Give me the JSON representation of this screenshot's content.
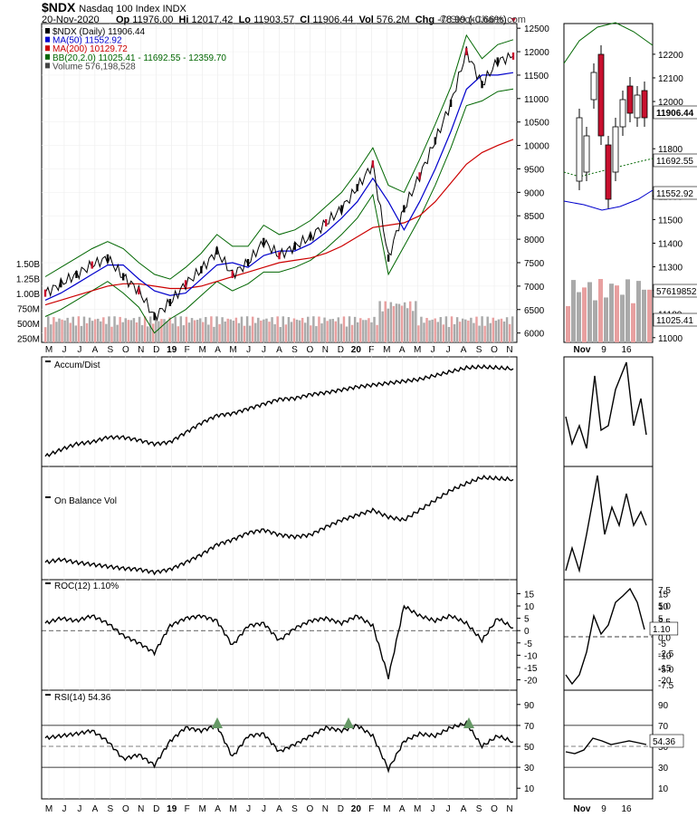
{
  "header": {
    "symbol": "$NDX",
    "name": "Nasdaq 100 Index INDX",
    "date": "20-Nov-2020",
    "op_label": "Op",
    "op": "11976.00",
    "hi_label": "Hi",
    "hi": "12017.42",
    "lo_label": "Lo",
    "lo": "11903.57",
    "cl_label": "Cl",
    "cl": "11906.44",
    "vol_label": "Vol",
    "vol": "576.2M",
    "chg_label": "Chg",
    "chg": "-78.99 (-0.66%)",
    "brand": "© StockCharts.com"
  },
  "colors": {
    "price": "#000000",
    "ma50": "#0000cc",
    "ma200": "#cc0000",
    "bb": "#006600",
    "vol_up": "#aaaaaa",
    "vol_down": "#e8a0a0",
    "candle_down": "#c8102e",
    "rsi_fill": "#669966"
  },
  "legend": {
    "price": "$NDX (Daily) 11906.44",
    "ma50": "MA(50) 11552.92",
    "ma200": "MA(200) 10129.72",
    "bb": "BB(20,2.0) 11025.41 - 11692.55 - 12359.70",
    "volume": "Volume 576,198,528"
  },
  "badges": {
    "price": "11906.44",
    "bb_mid": "11692.55",
    "ma50": "11552.92",
    "volume": "576198528",
    "bb_low": "11025.41",
    "roc": "1.10",
    "rsi": "54.36"
  },
  "x_labels": [
    "M",
    "J",
    "J",
    "A",
    "S",
    "O",
    "N",
    "D",
    "19",
    "F",
    "M",
    "A",
    "M",
    "J",
    "J",
    "A",
    "S",
    "O",
    "N",
    "D",
    "20",
    "F",
    "M",
    "A",
    "M",
    "J",
    "J",
    "A",
    "S",
    "O",
    "N"
  ],
  "zoom_x_labels": [
    "Nov",
    "9",
    "16"
  ],
  "chart_data": [
    {
      "type": "line",
      "title": "$NDX (Daily) 11906.44",
      "y_ticks_price": [
        12500,
        12000,
        11500,
        11000,
        10500,
        10000,
        9500,
        9000,
        8500,
        8000,
        7500,
        7000,
        6500,
        6000
      ],
      "y_ticks_volume": [
        "1.50B",
        "1.25B",
        "1.00B",
        "750M",
        "500M",
        "250M"
      ],
      "x_dates": [
        "2018-05",
        "2018-06",
        "2018-07",
        "2018-08",
        "2018-09",
        "2018-10",
        "2018-11",
        "2018-12",
        "2019-01",
        "2019-02",
        "2019-03",
        "2019-04",
        "2019-05",
        "2019-06",
        "2019-07",
        "2019-08",
        "2019-09",
        "2019-10",
        "2019-11",
        "2019-12",
        "2020-01",
        "2020-02",
        "2020-03",
        "2020-04",
        "2020-05",
        "2020-06",
        "2020-07",
        "2020-08",
        "2020-09",
        "2020-10",
        "2020-11"
      ],
      "series": [
        {
          "name": "$NDX (Daily) 11906.44",
          "values": [
            6850,
            7050,
            7250,
            7450,
            7600,
            7200,
            6900,
            6350,
            6650,
            7050,
            7350,
            7750,
            7250,
            7500,
            7950,
            7650,
            7850,
            8050,
            8350,
            8650,
            9100,
            9600,
            7600,
            8650,
            9350,
            10100,
            10900,
            12000,
            11300,
            11800,
            11906
          ]
        },
        {
          "name": "MA(50) 11552.92",
          "values": [
            6700,
            6850,
            7050,
            7250,
            7450,
            7450,
            7150,
            6900,
            6800,
            6850,
            7150,
            7450,
            7500,
            7400,
            7650,
            7750,
            7750,
            7900,
            8150,
            8450,
            8800,
            9300,
            8800,
            8200,
            8800,
            9500,
            10300,
            11200,
            11500,
            11500,
            11553
          ]
        },
        {
          "name": "MA(200) 10129.72",
          "values": [
            6600,
            6700,
            6800,
            6900,
            7000,
            7050,
            7050,
            7000,
            6950,
            6950,
            7000,
            7100,
            7200,
            7300,
            7400,
            7500,
            7550,
            7600,
            7700,
            7850,
            8050,
            8250,
            8300,
            8350,
            8500,
            8800,
            9200,
            9600,
            9850,
            10000,
            10130
          ]
        }
      ],
      "bollinger": {
        "name": "BB(20,2.0) 11025.41 - 11692.55 - 12359.70",
        "lower": 11025.41,
        "middle": 11692.55,
        "upper": 12359.7
      },
      "volume_last": 576198528
    },
    {
      "type": "line",
      "title": "Accum/Dist",
      "values": [
        0.05,
        0.12,
        0.18,
        0.2,
        0.25,
        0.25,
        0.22,
        0.18,
        0.2,
        0.3,
        0.4,
        0.48,
        0.5,
        0.55,
        0.6,
        0.65,
        0.66,
        0.7,
        0.72,
        0.75,
        0.78,
        0.8,
        0.82,
        0.84,
        0.86,
        0.9,
        0.94,
        0.98,
        0.99,
        0.98,
        0.97
      ]
    },
    {
      "type": "line",
      "title": "On Balance Vol",
      "values": [
        0.12,
        0.15,
        0.12,
        0.1,
        0.08,
        0.06,
        0.05,
        0.02,
        0.05,
        0.12,
        0.2,
        0.3,
        0.35,
        0.42,
        0.45,
        0.4,
        0.38,
        0.4,
        0.48,
        0.55,
        0.6,
        0.65,
        0.58,
        0.55,
        0.65,
        0.75,
        0.85,
        0.92,
        0.98,
        0.97,
        0.96
      ]
    },
    {
      "type": "line",
      "title": "ROC(12) 1.10%",
      "y_ticks": [
        15,
        10,
        5,
        0,
        -5,
        -10,
        -15,
        -20
      ],
      "values": [
        3,
        5,
        4,
        6,
        3,
        -2,
        -5,
        -9,
        2,
        5,
        6,
        4,
        -6,
        2,
        3,
        -4,
        1,
        4,
        5,
        3,
        6,
        2,
        -19,
        10,
        6,
        4,
        6,
        3,
        -4,
        5,
        1.1
      ]
    },
    {
      "type": "line",
      "title": "RSI(14) 54.36",
      "y_ticks": [
        90,
        70,
        50,
        30,
        10
      ],
      "values": [
        58,
        60,
        62,
        65,
        55,
        38,
        42,
        32,
        55,
        68,
        65,
        70,
        40,
        60,
        62,
        45,
        52,
        60,
        68,
        65,
        70,
        60,
        28,
        55,
        62,
        60,
        68,
        72,
        50,
        60,
        54.36
      ]
    }
  ]
}
